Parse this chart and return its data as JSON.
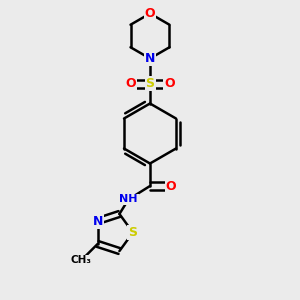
{
  "bg_color": "#ebebeb",
  "atom_colors": {
    "C": "#000000",
    "N": "#0000ee",
    "O": "#ff0000",
    "S": "#cccc00",
    "H": "#555555"
  },
  "bond_color": "#000000",
  "bond_width": 1.8,
  "font_size": 8.5,
  "fig_size": [
    3.0,
    3.0
  ],
  "dpi": 100
}
